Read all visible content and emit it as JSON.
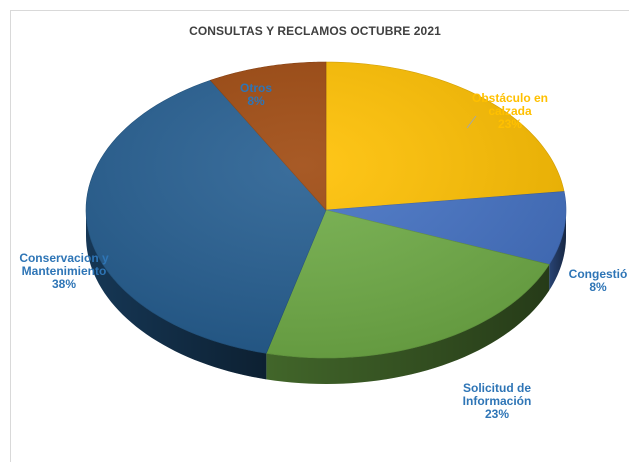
{
  "chart_data": {
    "type": "pie",
    "title": "CONSULTAS Y RECLAMOS OCTUBRE 2021",
    "three_d": true,
    "legend": "none",
    "slices": [
      {
        "label": "Obstáculo en calzada",
        "value": 23,
        "pct_text": "23%",
        "color": "#FFC000",
        "label_color": "#FFC000"
      },
      {
        "label": "Congestió",
        "value": 8,
        "pct_text": "8%",
        "color": "#4472C4",
        "label_color": "#2E75B6"
      },
      {
        "label": "Solicitud de Información",
        "value": 23,
        "pct_text": "23%",
        "color": "#70AD47",
        "label_color": "#2E75B6"
      },
      {
        "label": "Conservacion y Mantenimiento",
        "value": 38,
        "pct_text": "38%",
        "color": "#255E91",
        "label_color": "#2E75B6"
      },
      {
        "label": "Otros",
        "value": 8,
        "pct_text": "8%",
        "color": "#9E480E",
        "label_color": "#2E75B6"
      }
    ]
  }
}
